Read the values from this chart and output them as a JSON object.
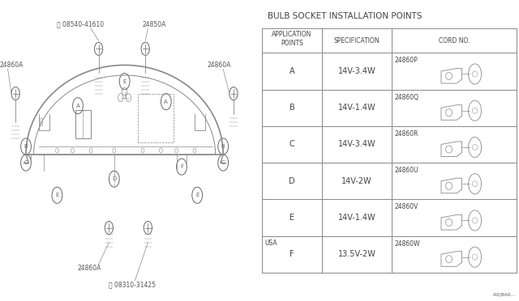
{
  "title": "BULB SOCKET INSTALLATION POINTS",
  "table_rows": [
    {
      "app": "A",
      "spec": "14V-3.4W",
      "cord": "24860P"
    },
    {
      "app": "B",
      "spec": "14V-1.4W",
      "cord": "24860Q"
    },
    {
      "app": "C",
      "spec": "14V-3.4W",
      "cord": "24860R"
    },
    {
      "app": "D",
      "spec": "14V-2W",
      "cord": "24860U"
    },
    {
      "app": "E",
      "spec": "14V-1.4W",
      "cord": "24860V"
    },
    {
      "app": "F",
      "spec": "13.5V-2W",
      "cord": "24860W",
      "prefix": "USA"
    }
  ],
  "bg_color": "#ffffff",
  "line_color": "#888888",
  "text_color": "#555555",
  "dark_color": "#444444"
}
